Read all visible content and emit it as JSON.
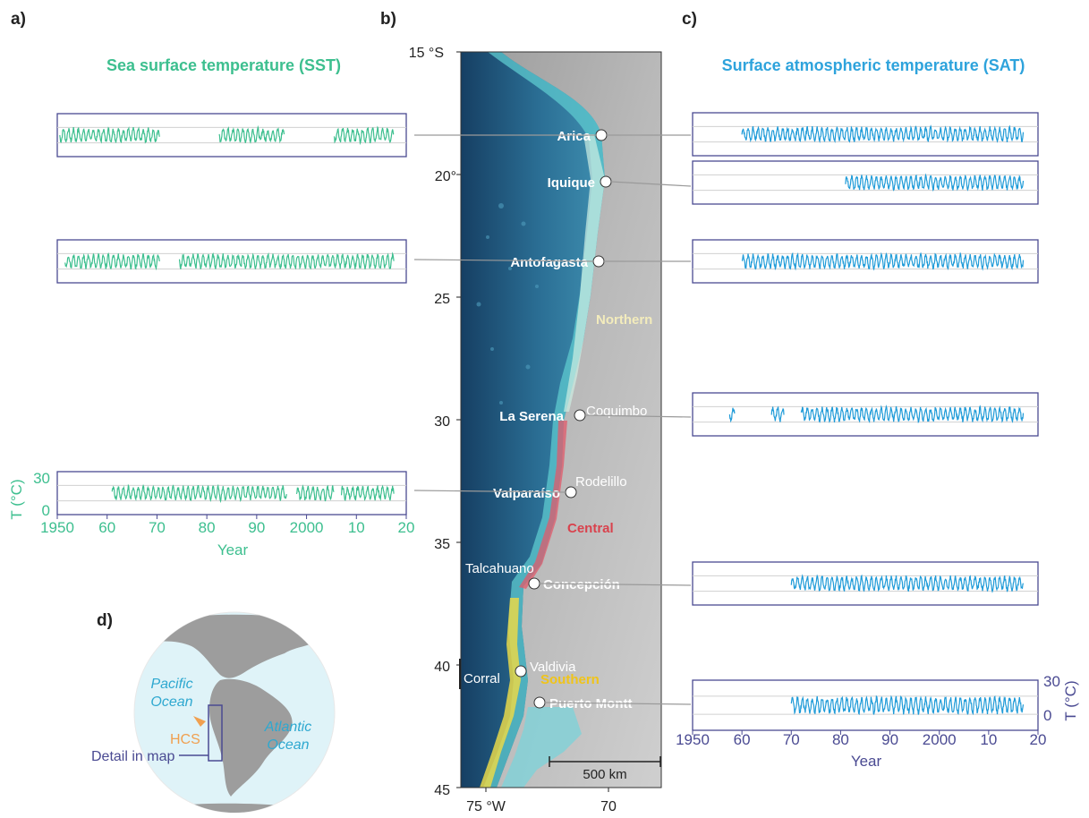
{
  "panels": {
    "a": "a)",
    "b": "b)",
    "c": "c)",
    "d": "d)"
  },
  "sst": {
    "title": "Sea surface temperature (SST)",
    "ylabel": "T (°C)",
    "yticks": [
      "30",
      "0"
    ],
    "xticks": [
      "1950",
      "60",
      "70",
      "80",
      "90",
      "2000",
      "10",
      "20"
    ],
    "xlabel": "Year",
    "color": "#3dbf8f",
    "stations": [
      {
        "name": "Arica",
        "segments": [
          [
            1950.5,
            1970.5
          ],
          [
            1982.5,
            1995.5
          ],
          [
            2005.5,
            2017.5
          ]
        ]
      },
      {
        "name": "Antofagasta",
        "segments": [
          [
            1951.5,
            1970.5
          ],
          [
            1974.5,
            2017.5
          ]
        ]
      },
      {
        "name": "Valparaíso",
        "segments": [
          [
            1961,
            1996
          ],
          [
            1998,
            2005.5
          ],
          [
            2007,
            2017.5
          ]
        ]
      }
    ]
  },
  "sat": {
    "title": "Surface atmospheric temperature (SAT)",
    "ylabel": "T (°C)",
    "yticks": [
      "30",
      "0"
    ],
    "xticks": [
      "1950",
      "60",
      "70",
      "80",
      "90",
      "2000",
      "10",
      "20"
    ],
    "xlabel": "Year",
    "color": "#1f9bd8",
    "stations": [
      {
        "name": "Arica",
        "segments": [
          [
            1960,
            2017
          ]
        ]
      },
      {
        "name": "Iquique",
        "segments": [
          [
            1981,
            2017
          ]
        ]
      },
      {
        "name": "Antofagasta",
        "segments": [
          [
            1960,
            2017
          ]
        ]
      },
      {
        "name": "Coquimbo",
        "segments": [
          [
            1957.5,
            1958.5
          ],
          [
            1966,
            1968.5
          ],
          [
            1972,
            2017
          ]
        ]
      },
      {
        "name": "Concepción",
        "segments": [
          [
            1970,
            2017
          ]
        ]
      },
      {
        "name": "Puerto Montt",
        "segments": [
          [
            1970,
            2017
          ]
        ]
      }
    ]
  },
  "map": {
    "lat_labels": [
      "15 °S",
      "20°",
      "25",
      "30",
      "35",
      "40",
      "45"
    ],
    "lon_labels": [
      "75 °W",
      "70"
    ],
    "scale_bar": "500 km",
    "regions": {
      "northern": "Northern",
      "central": "Central",
      "southern": "Southern"
    },
    "cities": {
      "arica": "Arica",
      "iquique": "Iquique",
      "antofagasta": "Antofagasta",
      "la_serena": "La Serena",
      "coquimbo": "Coquimbo",
      "rodelillo": "Rodelillo",
      "valparaiso": "Valparaíso",
      "talcahuano": "Talcahuano",
      "concepcion": "Concepción",
      "corral": "Corral",
      "valdivia": "Valdivia",
      "puerto_montt": "Puerto Montt"
    }
  },
  "globe": {
    "pacific_1": "Pacific",
    "pacific_2": "Ocean",
    "atlantic_1": "Atlantic",
    "atlantic_2": "Ocean",
    "hcs": "HCS",
    "detail": "Detail in map"
  }
}
